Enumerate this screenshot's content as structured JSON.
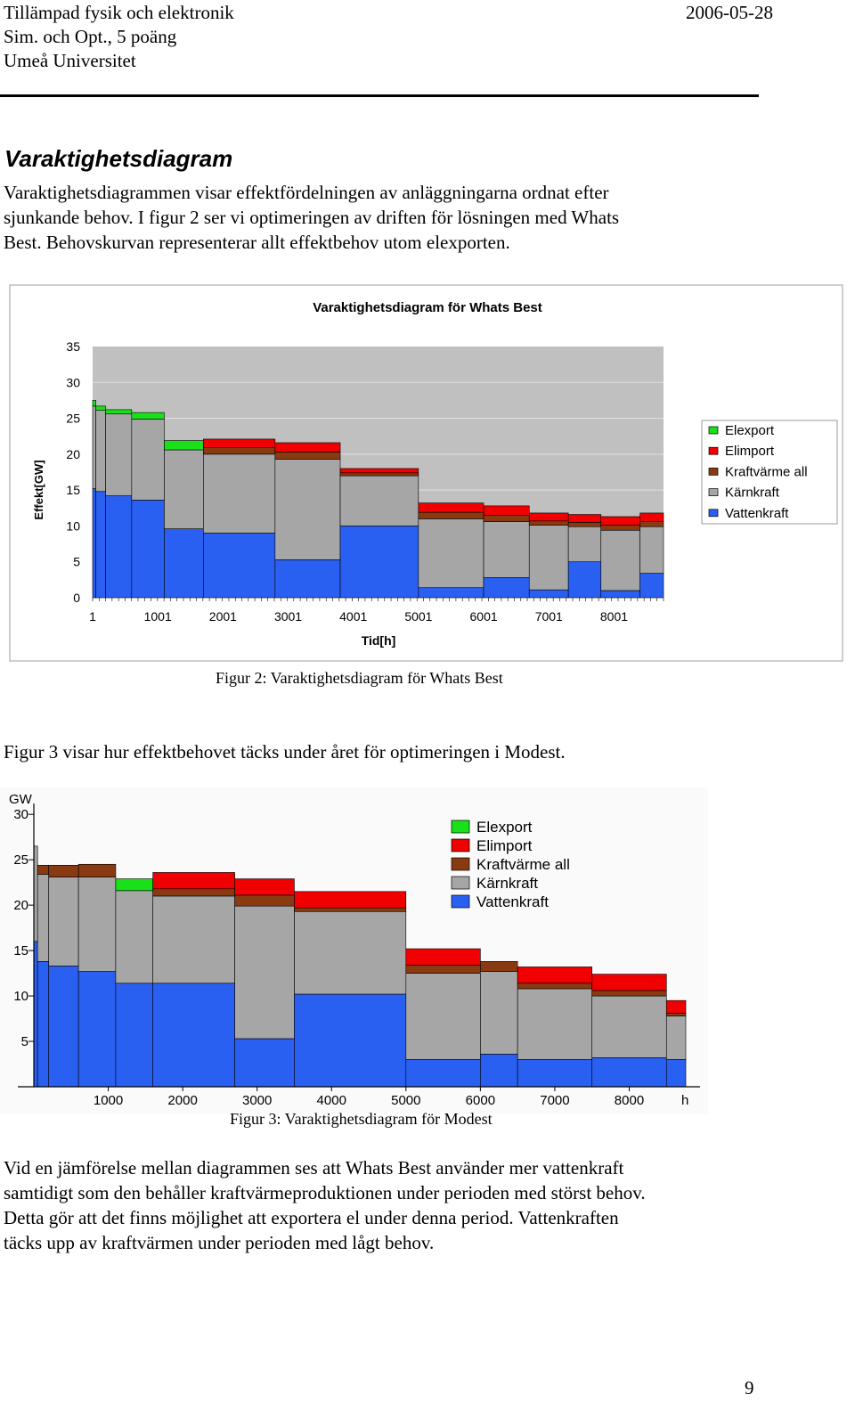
{
  "header": {
    "line1": "Tillämpad fysik och elektronik",
    "line2": "Sim. och Opt., 5 poäng",
    "line3": "Umeå Universitet",
    "date": "2006-05-28"
  },
  "section_title": "Varaktighetsdiagram",
  "intro_lines": [
    "Varaktighetsdiagrammen visar effektfördelningen av anläggningarna ordnat efter",
    "sjunkande behov. I figur 2 ser vi optimeringen av driften för lösningen med Whats",
    "Best. Behovskurvan representerar allt effektbehov utom elexporten."
  ],
  "figure2_caption": "Figur 2: Varaktighetsdiagram för Whats Best",
  "mid_text": "Figur 3 visar hur effektbehovet täcks under året för optimeringen i Modest.",
  "figure3_caption": "Figur 3: Varaktighetsdiagram för Modest",
  "conclusion_lines": [
    "Vid en jämförelse mellan diagrammen ses att Whats Best använder mer vattenkraft",
    "samtidigt som den behåller kraftvärmeproduktionen under perioden med störst behov.",
    "Detta gör att det finns möjlighet att exportera el under denna period. Vattenkraften",
    "täcks upp av kraftvärmen under perioden med lågt behov."
  ],
  "page_number": "9",
  "colors": {
    "Elexport": "#19e019",
    "Elimport": "#f00000",
    "Kraftvärme all": "#8a3a10",
    "Kärnkraft": "#a6a6a6",
    "Vattenkraft": "#2a60f2"
  },
  "chart_data": [
    {
      "type": "area",
      "stacked": true,
      "step": true,
      "title": "Varaktighetsdiagram för Whats Best",
      "xlabel": "Tid[h]",
      "ylabel": "Effekt[GW]",
      "xlim": [
        1,
        8760
      ],
      "ylim": [
        0,
        35
      ],
      "yticks": [
        "35",
        "30",
        "25",
        "20",
        "15",
        "10",
        "5",
        "0"
      ],
      "xticks": [
        "1",
        "1001",
        "2001",
        "3001",
        "4001",
        "5001",
        "6001",
        "7001",
        "8001"
      ],
      "legend": [
        "Elexport",
        "Elimport",
        "Kraftvärme all",
        "Kärnkraft",
        "Vattenkraft"
      ],
      "legend_position": "right",
      "x_start": [
        1,
        50,
        200,
        600,
        1100,
        1700,
        2800,
        3800,
        5000,
        6000,
        6700,
        7300,
        7800,
        8400
      ],
      "x_end": [
        50,
        200,
        600,
        1100,
        1700,
        2800,
        3800,
        5000,
        6000,
        6700,
        7300,
        7800,
        8400,
        8760
      ],
      "series": [
        {
          "name": "Vattenkraft",
          "values": [
            15.2,
            14.8,
            14.2,
            13.6,
            9.6,
            9.0,
            5.3,
            10.0,
            1.4,
            2.8,
            1.1,
            5.0,
            1.0,
            3.4
          ]
        },
        {
          "name": "Kärnkraft",
          "values": [
            11.5,
            11.3,
            11.4,
            11.3,
            11.0,
            11.0,
            14.0,
            7.0,
            9.6,
            7.8,
            9.0,
            4.9,
            8.4,
            6.5
          ]
        },
        {
          "name": "Kraftvärme all",
          "values": [
            0,
            0,
            0,
            0,
            0,
            0.9,
            1.0,
            0.4,
            0.9,
            0.9,
            0.6,
            0.6,
            0.7,
            0.7
          ]
        },
        {
          "name": "Elimport",
          "values": [
            0,
            0,
            0,
            0,
            0,
            1.2,
            1.3,
            0.6,
            1.3,
            1.3,
            1.1,
            1.1,
            1.2,
            1.2
          ]
        },
        {
          "name": "Elexport",
          "values": [
            0.8,
            0.6,
            0.6,
            0.9,
            1.3,
            0,
            0,
            0,
            0,
            0,
            0,
            0,
            0,
            0
          ]
        }
      ]
    },
    {
      "type": "area",
      "stacked": true,
      "step": true,
      "title": "",
      "xlabel": "h",
      "ylabel": "GW",
      "xlim": [
        0,
        8760
      ],
      "ylim": [
        0,
        31
      ],
      "yticks": [
        "30",
        "25",
        "20",
        "15",
        "10",
        "5"
      ],
      "xticks": [
        "1000",
        "2000",
        "3000",
        "4000",
        "5000",
        "6000",
        "7000",
        "8000"
      ],
      "legend": [
        "Elexport",
        "Elimport",
        "Kraftvärme all",
        "Kärnkraft",
        "Vattenkraft"
      ],
      "legend_position": "top-right",
      "x_start": [
        0,
        50,
        200,
        600,
        1100,
        1600,
        2700,
        3500,
        5000,
        6000,
        6500,
        7500,
        8500
      ],
      "x_end": [
        50,
        200,
        600,
        1100,
        1600,
        2700,
        3500,
        5000,
        6000,
        6500,
        7500,
        8500,
        8760
      ],
      "series": [
        {
          "name": "Vattenkraft",
          "values": [
            16.0,
            13.8,
            13.3,
            12.7,
            11.4,
            11.4,
            5.3,
            10.2,
            3.0,
            3.6,
            3.0,
            3.2,
            3.0
          ]
        },
        {
          "name": "Kärnkraft",
          "values": [
            10.5,
            9.6,
            9.8,
            10.4,
            10.2,
            9.6,
            14.6,
            9.1,
            9.5,
            9.1,
            7.8,
            6.8,
            4.8
          ]
        },
        {
          "name": "Kraftvärme all",
          "values": [
            0,
            1.0,
            1.3,
            1.4,
            0,
            0.8,
            1.2,
            0.4,
            0.9,
            1.1,
            0.6,
            0.6,
            0.3
          ]
        },
        {
          "name": "Elimport",
          "values": [
            0,
            0,
            0,
            0,
            0,
            1.8,
            1.8,
            1.8,
            1.8,
            0,
            1.8,
            1.8,
            1.4
          ]
        },
        {
          "name": "Elexport",
          "values": [
            0,
            0,
            0,
            0,
            1.3,
            0,
            0,
            0,
            0,
            0,
            0,
            0,
            0
          ]
        }
      ]
    }
  ]
}
